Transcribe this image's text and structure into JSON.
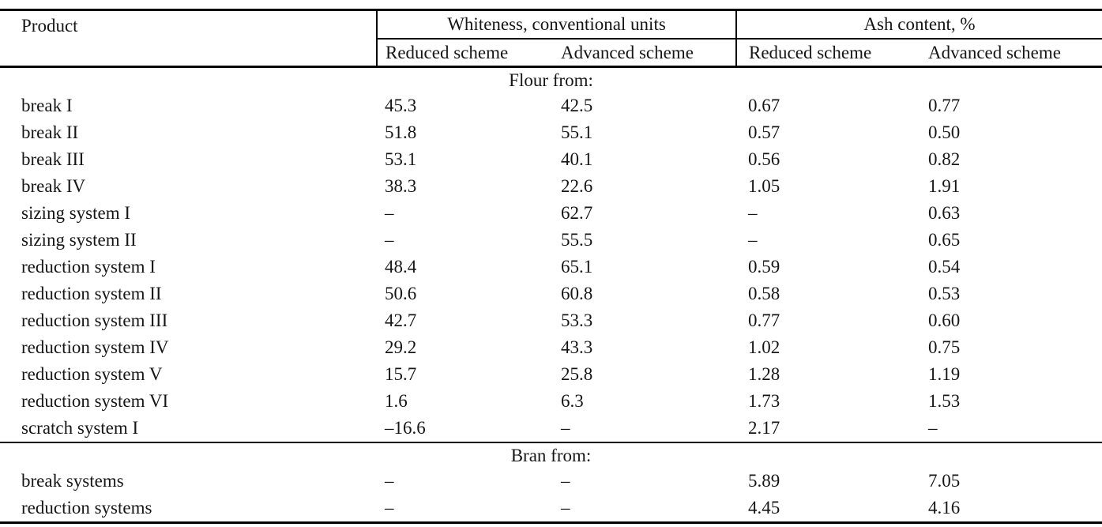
{
  "table": {
    "header": {
      "product": "Product",
      "whiteness_group": "Whiteness, conventional units",
      "ash_group": "Ash content, %",
      "subheaders": [
        "Reduced scheme",
        "Advanced scheme",
        "Reduced scheme",
        "Advanced scheme"
      ]
    },
    "sections": [
      {
        "label": "Flour from:",
        "rows": [
          {
            "product": "break I",
            "values": [
              "45.3",
              "42.5",
              "0.67",
              "0.77"
            ]
          },
          {
            "product": "break II",
            "values": [
              "51.8",
              "55.1",
              "0.57",
              "0.50"
            ]
          },
          {
            "product": "break III",
            "values": [
              "53.1",
              "40.1",
              "0.56",
              "0.82"
            ]
          },
          {
            "product": "break IV",
            "values": [
              "38.3",
              "22.6",
              "1.05",
              "1.91"
            ]
          },
          {
            "product": "sizing system I",
            "values": [
              "–",
              "62.7",
              "–",
              "0.63"
            ]
          },
          {
            "product": "sizing system II",
            "values": [
              "–",
              "55.5",
              "–",
              "0.65"
            ]
          },
          {
            "product": "reduction system I",
            "values": [
              "48.4",
              "65.1",
              "0.59",
              "0.54"
            ]
          },
          {
            "product": "reduction system II",
            "values": [
              "50.6",
              "60.8",
              "0.58",
              "0.53"
            ]
          },
          {
            "product": "reduction system III",
            "values": [
              "42.7",
              "53.3",
              "0.77",
              "0.60"
            ]
          },
          {
            "product": "reduction system IV",
            "values": [
              "29.2",
              "43.3",
              "1.02",
              "0.75"
            ]
          },
          {
            "product": "reduction system V",
            "values": [
              "15.7",
              "25.8",
              "1.28",
              "1.19"
            ]
          },
          {
            "product": "reduction system VI",
            "values": [
              "1.6",
              "6.3",
              "1.73",
              "1.53"
            ]
          },
          {
            "product": "scratch system I",
            "values": [
              "–16.6",
              "–",
              "2.17",
              "–"
            ]
          }
        ]
      },
      {
        "label": "Bran from:",
        "rows": [
          {
            "product": "break systems",
            "values": [
              "–",
              "–",
              "5.89",
              "7.05"
            ]
          },
          {
            "product": "reduction systems",
            "values": [
              "–",
              "–",
              "4.45",
              "4.16"
            ]
          }
        ]
      }
    ]
  },
  "colors": {
    "text": "#161616",
    "line": "#000000",
    "background": "#ffffff"
  }
}
